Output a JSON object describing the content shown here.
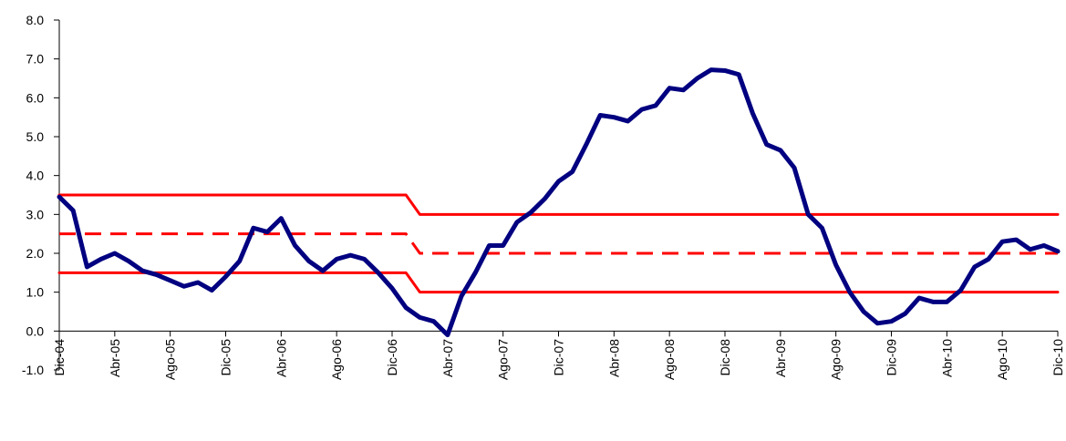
{
  "chart_data": {
    "type": "line",
    "categories": [
      "Dic-04",
      null,
      null,
      null,
      "Abr-05",
      null,
      null,
      null,
      "Ago-05",
      null,
      null,
      null,
      "Dic-05",
      null,
      null,
      null,
      "Abr-06",
      null,
      null,
      null,
      "Ago-06",
      null,
      null,
      null,
      "Dic-06",
      null,
      null,
      null,
      "Abr-07",
      null,
      null,
      null,
      "Ago-07",
      null,
      null,
      null,
      "Dic-07",
      null,
      null,
      null,
      "Abr-08",
      null,
      null,
      null,
      "Ago-08",
      null,
      null,
      null,
      "Dic-08",
      null,
      null,
      null,
      "Abr-09",
      null,
      null,
      null,
      "Ago-09",
      null,
      null,
      null,
      "Dic-09",
      null,
      null,
      null,
      "Abr-10",
      null,
      null,
      null,
      "Ago-10",
      null,
      null,
      null,
      "Dic-10"
    ],
    "series": [
      {
        "color": "#ff0000",
        "dashed": false,
        "values": [
          3.5,
          3.5,
          3.5,
          3.5,
          3.5,
          3.5,
          3.5,
          3.5,
          3.5,
          3.5,
          3.5,
          3.5,
          3.5,
          3.5,
          3.5,
          3.5,
          3.5,
          3.5,
          3.5,
          3.5,
          3.5,
          3.5,
          3.5,
          3.5,
          3.5,
          3.5,
          3,
          3,
          3,
          3,
          3,
          3,
          3,
          3,
          3,
          3,
          3,
          3,
          3,
          3,
          3,
          3,
          3,
          3,
          3,
          3,
          3,
          3,
          3,
          3,
          3,
          3,
          3,
          3,
          3,
          3,
          3,
          3,
          3,
          3,
          3,
          3,
          3,
          3,
          3,
          3,
          3,
          3,
          3,
          3,
          3,
          3,
          3
        ]
      },
      {
        "color": "#ff0000",
        "dashed": true,
        "values": [
          2.5,
          2.5,
          2.5,
          2.5,
          2.5,
          2.5,
          2.5,
          2.5,
          2.5,
          2.5,
          2.5,
          2.5,
          2.5,
          2.5,
          2.5,
          2.5,
          2.5,
          2.5,
          2.5,
          2.5,
          2.5,
          2.5,
          2.5,
          2.5,
          2.5,
          2.5,
          2,
          2,
          2,
          2,
          2,
          2,
          2,
          2,
          2,
          2,
          2,
          2,
          2,
          2,
          2,
          2,
          2,
          2,
          2,
          2,
          2,
          2,
          2,
          2,
          2,
          2,
          2,
          2,
          2,
          2,
          2,
          2,
          2,
          2,
          2,
          2,
          2,
          2,
          2,
          2,
          2,
          2,
          2,
          2,
          2,
          2,
          2
        ]
      },
      {
        "color": "#ff0000",
        "dashed": false,
        "values": [
          1.5,
          1.5,
          1.5,
          1.5,
          1.5,
          1.5,
          1.5,
          1.5,
          1.5,
          1.5,
          1.5,
          1.5,
          1.5,
          1.5,
          1.5,
          1.5,
          1.5,
          1.5,
          1.5,
          1.5,
          1.5,
          1.5,
          1.5,
          1.5,
          1.5,
          1.5,
          1,
          1,
          1,
          1,
          1,
          1,
          1,
          1,
          1,
          1,
          1,
          1,
          1,
          1,
          1,
          1,
          1,
          1,
          1,
          1,
          1,
          1,
          1,
          1,
          1,
          1,
          1,
          1,
          1,
          1,
          1,
          1,
          1,
          1,
          1,
          1,
          1,
          1,
          1,
          1,
          1,
          1,
          1,
          1,
          1,
          1,
          1
        ]
      },
      {
        "color": "#000080",
        "dashed": false,
        "values": [
          3.45,
          3.1,
          1.65,
          1.85,
          2.0,
          1.8,
          1.55,
          1.45,
          1.3,
          1.15,
          1.25,
          1.05,
          1.4,
          1.8,
          2.65,
          2.55,
          2.9,
          2.2,
          1.8,
          1.55,
          1.85,
          1.95,
          1.85,
          1.5,
          1.1,
          0.6,
          0.35,
          0.25,
          -0.1,
          0.9,
          1.5,
          2.2,
          2.2,
          2.8,
          3.05,
          3.4,
          3.85,
          4.1,
          4.8,
          5.55,
          5.5,
          5.4,
          5.7,
          5.8,
          6.25,
          6.2,
          6.5,
          6.72,
          6.7,
          6.6,
          5.6,
          4.8,
          4.65,
          4.2,
          3.0,
          2.65,
          1.7,
          1.0,
          0.5,
          0.2,
          0.25,
          0.45,
          0.85,
          0.75,
          0.75,
          1.05,
          1.65,
          1.85,
          2.3,
          2.35,
          2.1,
          2.2,
          2.05
        ]
      }
    ],
    "ylim": [
      -1,
      8
    ],
    "yticks": [
      {
        "value": -1,
        "label": "-1.0"
      },
      {
        "value": 0,
        "label": "0.0"
      },
      {
        "value": 1,
        "label": "1.0"
      },
      {
        "value": 2,
        "label": "2.0"
      },
      {
        "value": 3,
        "label": "3.0"
      },
      {
        "value": 4,
        "label": "4.0"
      },
      {
        "value": 5,
        "label": "5.0"
      },
      {
        "value": 6,
        "label": "6.0"
      },
      {
        "value": 7,
        "label": "7.0"
      },
      {
        "value": 8,
        "label": "8.0"
      }
    ]
  }
}
